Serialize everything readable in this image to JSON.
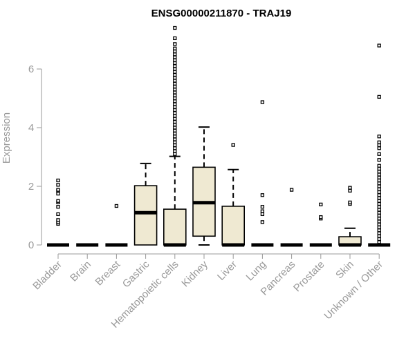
{
  "chart_data": {
    "type": "boxplot",
    "title": "ENSG00000211870 - TRAJ19",
    "xlabel": "",
    "ylabel": "Expression",
    "ylim": [
      0,
      7.4
    ],
    "yticks": [
      0,
      2,
      4,
      6
    ],
    "box_fill": "#efe9d2",
    "box_stroke": "#000000",
    "axis_color": "#999999",
    "categories": [
      {
        "name": "Bladder",
        "q1": 0,
        "median": 0,
        "q3": 0,
        "whisker_low": 0,
        "whisker_high": 0,
        "outliers": [
          0.72,
          0.78,
          0.85,
          1.05,
          1.3,
          1.45,
          1.5,
          1.75,
          1.85,
          1.88,
          2.05,
          2.2
        ]
      },
      {
        "name": "Brain",
        "q1": 0,
        "median": 0,
        "q3": 0,
        "whisker_low": 0,
        "whisker_high": 0,
        "outliers": []
      },
      {
        "name": "Breast",
        "q1": 0,
        "median": 0,
        "q3": 0,
        "whisker_low": 0,
        "whisker_high": 0,
        "outliers": [
          1.33
        ]
      },
      {
        "name": "Gastric",
        "q1": 0,
        "median": 1.1,
        "q3": 2.02,
        "whisker_low": 0,
        "whisker_high": 2.78,
        "outliers": []
      },
      {
        "name": "Hematopoietic cells",
        "q1": 0,
        "median": 0,
        "q3": 1.22,
        "whisker_low": 0,
        "whisker_high": 3.02,
        "outliers": [
          3.1,
          3.2,
          3.3,
          3.4,
          3.5,
          3.6,
          3.7,
          3.8,
          3.9,
          4.0,
          4.1,
          4.2,
          4.3,
          4.4,
          4.5,
          4.6,
          4.7,
          4.8,
          4.9,
          5.0,
          5.1,
          5.2,
          5.3,
          5.4,
          5.5,
          5.6,
          5.7,
          5.8,
          5.9,
          6.0,
          6.1,
          6.2,
          6.3,
          6.4,
          6.5,
          6.6,
          6.7,
          6.85,
          7.05,
          7.4
        ]
      },
      {
        "name": "Kidney",
        "q1": 0.3,
        "median": 1.44,
        "q3": 2.65,
        "whisker_low": 0,
        "whisker_high": 4.02,
        "outliers": []
      },
      {
        "name": "Liver",
        "q1": 0,
        "median": 0,
        "q3": 1.32,
        "whisker_low": 0,
        "whisker_high": 2.57,
        "outliers": [
          3.41
        ]
      },
      {
        "name": "Lung",
        "q1": 0,
        "median": 0,
        "q3": 0,
        "whisker_low": 0,
        "whisker_high": 0,
        "outliers": [
          0.78,
          1.05,
          1.15,
          1.3,
          1.7,
          4.87
        ]
      },
      {
        "name": "Pancreas",
        "q1": 0,
        "median": 0,
        "q3": 0,
        "whisker_low": 0,
        "whisker_high": 0,
        "outliers": [
          1.88
        ]
      },
      {
        "name": "Prostate",
        "q1": 0,
        "median": 0,
        "q3": 0,
        "whisker_low": 0,
        "whisker_high": 0,
        "outliers": [
          0.9,
          0.95,
          1.38
        ]
      },
      {
        "name": "Skin",
        "q1": 0,
        "median": 0,
        "q3": 0.28,
        "whisker_low": 0,
        "whisker_high": 0.57,
        "outliers": [
          1.4,
          1.45,
          1.85,
          1.95
        ]
      },
      {
        "name": "Unknown / Other",
        "q1": 0,
        "median": 0,
        "q3": 0,
        "whisker_low": 0,
        "whisker_high": 0,
        "outliers": [
          0.1,
          0.2,
          0.3,
          0.4,
          0.5,
          0.6,
          0.7,
          0.8,
          0.9,
          1.0,
          1.1,
          1.2,
          1.3,
          1.4,
          1.5,
          1.6,
          1.7,
          1.8,
          1.9,
          2.0,
          2.1,
          2.2,
          2.3,
          2.4,
          2.5,
          2.6,
          2.7,
          2.9,
          3.1,
          3.3,
          3.4,
          3.5,
          3.7,
          5.05,
          6.8
        ]
      }
    ]
  }
}
